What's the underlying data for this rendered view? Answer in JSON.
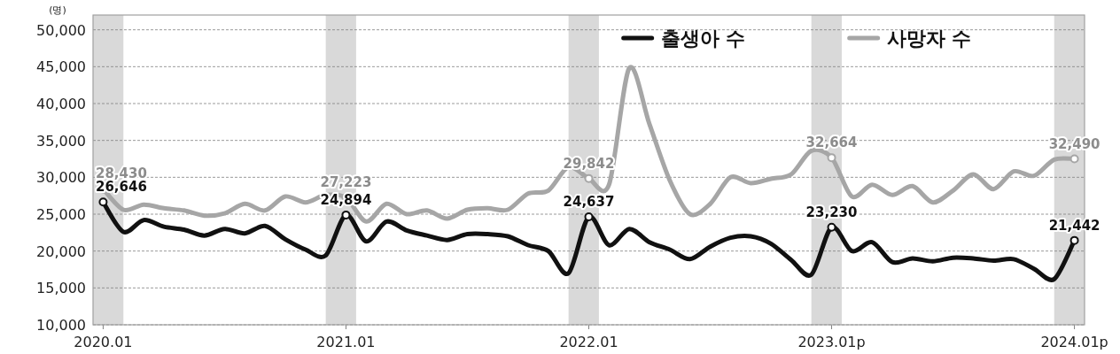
{
  "chart_data": {
    "type": "line",
    "ylabel": "(명)",
    "x": [
      "2020-01",
      "2020-02",
      "2020-03",
      "2020-04",
      "2020-05",
      "2020-06",
      "2020-07",
      "2020-08",
      "2020-09",
      "2020-10",
      "2020-11",
      "2020-12",
      "2021-01",
      "2021-02",
      "2021-03",
      "2021-04",
      "2021-05",
      "2021-06",
      "2021-07",
      "2021-08",
      "2021-09",
      "2021-10",
      "2021-11",
      "2021-12",
      "2022-01",
      "2022-02",
      "2022-03",
      "2022-04",
      "2022-05",
      "2022-06",
      "2022-07",
      "2022-08",
      "2022-09",
      "2022-10",
      "2022-11",
      "2022-12",
      "2023-01",
      "2023-02",
      "2023-03",
      "2023-04",
      "2023-05",
      "2023-06",
      "2023-07",
      "2023-08",
      "2023-09",
      "2023-10",
      "2023-11",
      "2023-12",
      "2024-01"
    ],
    "series": [
      {
        "name": "출생아 수",
        "color": "#111111",
        "values": [
          26646,
          22600,
          24200,
          23300,
          22900,
          22100,
          23000,
          22400,
          23400,
          21600,
          20200,
          19400,
          24894,
          21300,
          24000,
          22800,
          22100,
          21500,
          22300,
          22300,
          22000,
          20800,
          20000,
          17000,
          24637,
          20800,
          23000,
          21200,
          20200,
          18900,
          20600,
          21800,
          22000,
          21000,
          18800,
          16800,
          23230,
          20000,
          21200,
          18500,
          19000,
          18600,
          19100,
          19000,
          18700,
          18900,
          17600,
          16200,
          21442
        ],
        "value_labels": [
          "26,646",
          null,
          null,
          null,
          null,
          null,
          null,
          null,
          null,
          null,
          null,
          null,
          "24,894",
          null,
          null,
          null,
          null,
          null,
          null,
          null,
          null,
          null,
          null,
          null,
          "24,637",
          null,
          null,
          null,
          null,
          null,
          null,
          null,
          null,
          null,
          null,
          null,
          "23,230",
          null,
          null,
          null,
          null,
          null,
          null,
          null,
          null,
          null,
          null,
          null,
          "21,442"
        ]
      },
      {
        "name": "사망자 수",
        "color": "#a6a6a6",
        "values": [
          28430,
          25600,
          26300,
          25800,
          25500,
          24800,
          25100,
          26400,
          25500,
          27400,
          26600,
          27600,
          27223,
          24000,
          26400,
          25000,
          25500,
          24400,
          25600,
          25800,
          25600,
          27800,
          28200,
          31400,
          29842,
          29000,
          44800,
          37200,
          29600,
          25000,
          26400,
          30000,
          29200,
          29800,
          30400,
          33600,
          32664,
          27400,
          29000,
          27600,
          28800,
          26600,
          28200,
          30400,
          28400,
          30800,
          30200,
          32400,
          32490
        ],
        "value_labels": [
          "28,430",
          null,
          null,
          null,
          null,
          null,
          null,
          null,
          null,
          null,
          null,
          null,
          "27,223",
          null,
          null,
          null,
          null,
          null,
          null,
          null,
          null,
          null,
          null,
          null,
          "29,842",
          null,
          null,
          null,
          null,
          null,
          null,
          null,
          null,
          null,
          null,
          null,
          "32,664",
          null,
          null,
          null,
          null,
          null,
          null,
          null,
          null,
          null,
          null,
          null,
          "32,490"
        ]
      }
    ],
    "xlim": [
      "2019-12-16",
      "2024-01-16"
    ],
    "xticks": [
      {
        "value": "2020-01",
        "label": "2020.01"
      },
      {
        "value": "2021-01",
        "label": "2021.01"
      },
      {
        "value": "2022-01",
        "label": "2022.01"
      },
      {
        "value": "2023-01",
        "label": "2023.01p"
      },
      {
        "value": "2024-01",
        "label": "2024.01p"
      }
    ],
    "ylim": [
      10000,
      52000
    ],
    "yticks": [
      {
        "value": 10000,
        "label": "10,000"
      },
      {
        "value": 15000,
        "label": "15,000"
      },
      {
        "value": 20000,
        "label": "20,000"
      },
      {
        "value": 25000,
        "label": "25,000"
      },
      {
        "value": 30000,
        "label": "30,000"
      },
      {
        "value": 35000,
        "label": "35,000"
      },
      {
        "value": 40000,
        "label": "40,000"
      },
      {
        "value": 45000,
        "label": "45,000"
      },
      {
        "value": 50000,
        "label": "50,000"
      }
    ],
    "bands": [
      {
        "axis": "x",
        "from": "2019-12-16",
        "to": "2020-02",
        "color": "#d9d9d9"
      },
      {
        "axis": "x",
        "from": "2020-12",
        "to": "2021-01-16",
        "color": "#d9d9d9"
      },
      {
        "axis": "x",
        "from": "2021-12",
        "to": "2022-01-16",
        "color": "#d9d9d9"
      },
      {
        "axis": "x",
        "from": "2022-12",
        "to": "2023-01-16",
        "color": "#d9d9d9"
      },
      {
        "axis": "x",
        "from": "2023-12",
        "to": "2024-01-16",
        "color": "#d9d9d9"
      }
    ],
    "grid": "y",
    "legend": "top right",
    "line_style": "solid"
  }
}
